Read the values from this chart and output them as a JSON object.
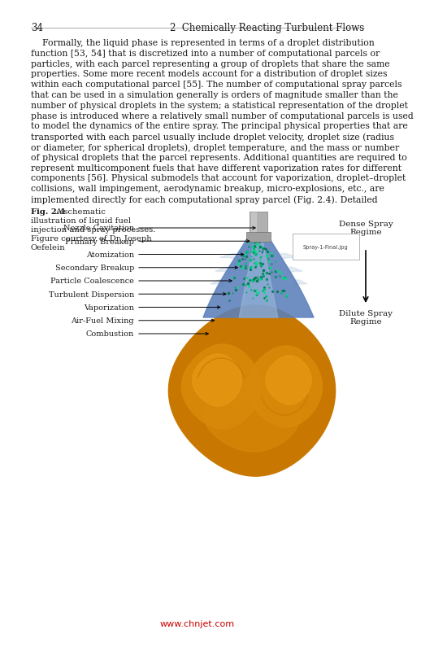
{
  "page_num": "34",
  "chapter_header": "2  Chemically Reacting Turbulent Flows",
  "bg_color": "#ffffff",
  "text_color": "#1a1a1a",
  "lines": [
    "    Formally, the liquid phase is represented in terms of a droplet distribution",
    "function [53, 54] that is discretized into a number of computational parcels or",
    "particles, with each parcel representing a group of droplets that share the same",
    "properties. Some more recent models account for a distribution of droplet sizes",
    "within each computational parcel [55]. The number of computational spray parcels",
    "that can be used in a simulation generally is orders of magnitude smaller than the",
    "number of physical droplets in the system; a statistical representation of the droplet",
    "phase is introduced where a relatively small number of computational parcels is used",
    "to model the dynamics of the entire spray. The principal physical properties that are",
    "transported with each parcel usually include droplet velocity, droplet size (radius",
    "or diameter, for spherical droplets), droplet temperature, and the mass or number",
    "of physical droplets that the parcel represents. Additional quantities are required to",
    "represent multicomponent fuels that have different vaporization rates for different",
    "components [56]. Physical submodels that account for vaporization, droplet–droplet",
    "collisions, wall impingement, aerodynamic breakup, micro-explosions, etc., are",
    "implemented directly for each computational spray parcel (Fig. 2.4). Detailed"
  ],
  "fig_bold": "Fig. 2.4",
  "fig_caption_lines": [
    "A schematic",
    "illustration of liquid fuel",
    "injection and spray processes.",
    "Figure courtesy of Dr. Joseph",
    "Oefelein"
  ],
  "labels_left": [
    "Nozzle Cavitation",
    "Primary Breakup",
    "Atomization",
    "Secondary Breakup",
    "Particle Coalescence",
    "Turbulent Dispersion",
    "Vaporization",
    "Air-Fuel Mixing",
    "Combustion"
  ],
  "dense_spray": "Dense Spray\nRegime",
  "dilute_spray": "Dilute Spray\nRegime",
  "spray_filename": "Spray-1-Final.jpg",
  "watermark": "www.chnjet.com",
  "watermark_color": "#cc0000",
  "orange_dark": "#C87800",
  "orange_mid": "#D98A0A",
  "orange_light": "#E89A15",
  "blue_spray": "#5B80BB",
  "blue_light": "#7BAAD5",
  "blue_lighter": "#A0C0E0",
  "teal_dark": "#007A50",
  "teal_mid": "#009060",
  "teal_light": "#00BB70"
}
